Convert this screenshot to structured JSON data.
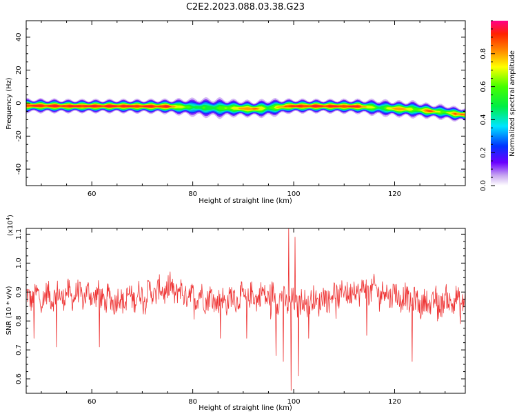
{
  "title": "C2E2.2023.088.03.38.G23",
  "chart_data": [
    {
      "type": "heatmap",
      "title": "C2E2.2023.088.03.38.G23",
      "xlabel": "Height of straight line (km)",
      "ylabel": "Frequency (Hz)",
      "xlim": [
        47,
        134
      ],
      "ylim": [
        -50,
        50
      ],
      "xticks": [
        60,
        80,
        100,
        120
      ],
      "yticks": [
        -40,
        -20,
        0,
        20,
        40
      ],
      "colorbar": {
        "label": "Normalized spectral amplitude",
        "range": [
          0,
          1
        ],
        "ticks": [
          0.0,
          0.2,
          0.4,
          0.6,
          0.8
        ]
      },
      "ridge": [
        {
          "x": 47,
          "f": -1.5,
          "amp": 0.95,
          "w": 1.6
        },
        {
          "x": 55,
          "f": -1.8,
          "amp": 0.98,
          "w": 1.5
        },
        {
          "x": 65,
          "f": -1.8,
          "amp": 0.98,
          "w": 1.5
        },
        {
          "x": 75,
          "f": -2.0,
          "amp": 0.95,
          "w": 1.6
        },
        {
          "x": 80,
          "f": -2.5,
          "amp": 0.55,
          "w": 2.2
        },
        {
          "x": 85,
          "f": -3.0,
          "amp": 0.6,
          "w": 2.4
        },
        {
          "x": 88,
          "f": -3.0,
          "amp": 0.75,
          "w": 2.0
        },
        {
          "x": 92,
          "f": -3.5,
          "amp": 0.92,
          "w": 1.8
        },
        {
          "x": 95,
          "f": -3.0,
          "amp": 0.6,
          "w": 2.2
        },
        {
          "x": 99,
          "f": -1.8,
          "amp": 0.95,
          "w": 1.6
        },
        {
          "x": 105,
          "f": -1.8,
          "amp": 0.97,
          "w": 1.5
        },
        {
          "x": 113,
          "f": -2.0,
          "amp": 0.95,
          "w": 1.6
        },
        {
          "x": 117,
          "f": -2.8,
          "amp": 0.55,
          "w": 2.0
        },
        {
          "x": 121,
          "f": -3.5,
          "amp": 0.92,
          "w": 1.8
        },
        {
          "x": 124,
          "f": -3.8,
          "amp": 0.65,
          "w": 2.0
        },
        {
          "x": 127,
          "f": -4.8,
          "amp": 0.92,
          "w": 1.6
        },
        {
          "x": 130,
          "f": -5.5,
          "amp": 0.6,
          "w": 1.8
        },
        {
          "x": 132,
          "f": -6.5,
          "amp": 0.92,
          "w": 1.6
        },
        {
          "x": 134,
          "f": -7.0,
          "amp": 0.85,
          "w": 1.6
        }
      ]
    },
    {
      "type": "line",
      "xlabel": "Height of straight line (km)",
      "ylabel": "SNR (10 * v/v)",
      "multiplier": "(x10",
      "multiplier_exp": "4",
      "multiplier_close": ")",
      "xlim": [
        47,
        134
      ],
      "ylim": [
        0.55,
        1.12
      ],
      "xticks": [
        60,
        80,
        100,
        120
      ],
      "yticks": [
        0.6,
        0.7,
        0.8,
        0.9,
        1.0,
        1.1
      ],
      "color": "#ee3333",
      "baseline": [
        {
          "x": 47,
          "y": 0.88
        },
        {
          "x": 55,
          "y": 0.89
        },
        {
          "x": 60,
          "y": 0.89
        },
        {
          "x": 65,
          "y": 0.87
        },
        {
          "x": 70,
          "y": 0.89
        },
        {
          "x": 75,
          "y": 0.91
        },
        {
          "x": 80,
          "y": 0.89
        },
        {
          "x": 85,
          "y": 0.87
        },
        {
          "x": 90,
          "y": 0.88
        },
        {
          "x": 95,
          "y": 0.89
        },
        {
          "x": 100,
          "y": 0.86
        },
        {
          "x": 105,
          "y": 0.87
        },
        {
          "x": 110,
          "y": 0.9
        },
        {
          "x": 115,
          "y": 0.91
        },
        {
          "x": 120,
          "y": 0.89
        },
        {
          "x": 125,
          "y": 0.86
        },
        {
          "x": 130,
          "y": 0.87
        },
        {
          "x": 134,
          "y": 0.87
        }
      ],
      "spikes": [
        {
          "x": 48.5,
          "y": 0.74
        },
        {
          "x": 53,
          "y": 0.71
        },
        {
          "x": 61.5,
          "y": 0.71
        },
        {
          "x": 75.5,
          "y": 0.97
        },
        {
          "x": 85.5,
          "y": 0.74
        },
        {
          "x": 90.7,
          "y": 0.74
        },
        {
          "x": 96.5,
          "y": 0.68
        },
        {
          "x": 97.9,
          "y": 0.66
        },
        {
          "x": 99.0,
          "y": 1.12
        },
        {
          "x": 99.5,
          "y": 0.56
        },
        {
          "x": 100.3,
          "y": 1.09
        },
        {
          "x": 100.9,
          "y": 0.61
        },
        {
          "x": 103,
          "y": 0.74
        },
        {
          "x": 114.5,
          "y": 0.75
        },
        {
          "x": 123.5,
          "y": 0.66
        },
        {
          "x": 128.5,
          "y": 0.8
        },
        {
          "x": 133,
          "y": 0.79
        }
      ]
    }
  ]
}
